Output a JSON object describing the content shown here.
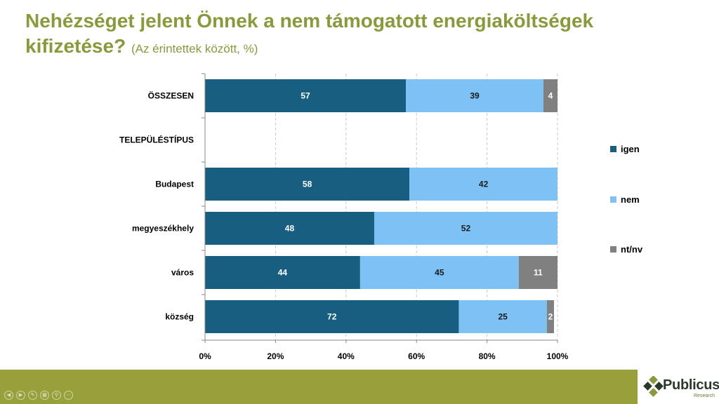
{
  "title": {
    "main": "Nehézséget jelent Önnek a nem támogatott energiaköltségek kifizetése?",
    "sub": "(Az érintettek között, %)"
  },
  "colors": {
    "igen": "#175e80",
    "nem": "#7dc1f5",
    "ntnv": "#808080",
    "title": "#8a9a3a",
    "footer": "#98a03c"
  },
  "chart_data": {
    "type": "bar",
    "orientation": "horizontal",
    "stacked": true,
    "categories": [
      "ÖSSZESEN",
      "TELEPÜLÉSTÍPUS",
      "Budapest",
      "megyeszékhely",
      "város",
      "község"
    ],
    "series": [
      {
        "name": "igen",
        "values": [
          57,
          null,
          58,
          48,
          44,
          72
        ]
      },
      {
        "name": "nem",
        "values": [
          39,
          null,
          42,
          52,
          45,
          25
        ]
      },
      {
        "name": "nt/nv",
        "values": [
          4,
          null,
          null,
          null,
          11,
          2
        ]
      }
    ],
    "x_ticks": [
      "0%",
      "20%",
      "40%",
      "60%",
      "80%",
      "100%"
    ],
    "xlim": [
      0,
      100
    ],
    "legend": "right"
  },
  "footer": {
    "nav_icons": [
      "prev-icon",
      "next-icon",
      "pen-icon",
      "slides-icon",
      "zoom-icon",
      "more-icon"
    ],
    "logo_name": "Publicus",
    "logo_sub": "Research"
  }
}
